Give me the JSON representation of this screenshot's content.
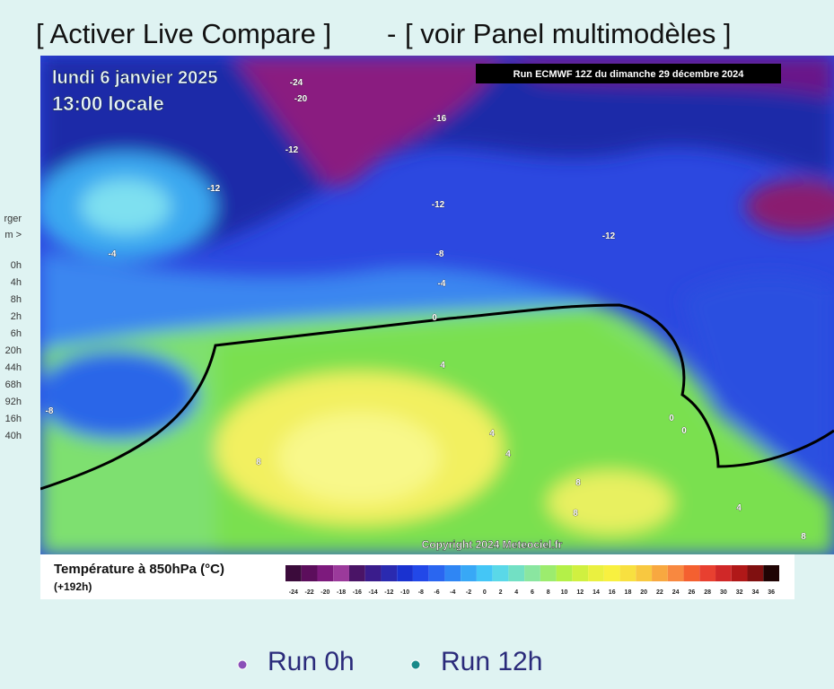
{
  "header": {
    "link_left": "[ Activer Live Compare ]",
    "separator": "-",
    "link_right": "[ voir Panel multimodèles ]"
  },
  "sidebar": {
    "items": [
      "rger",
      "m >",
      "0h",
      "4h",
      "8h",
      "2h",
      "6h",
      "20h",
      "44h",
      "68h",
      "92h",
      "16h",
      "40h"
    ]
  },
  "map": {
    "date": "lundi 6 janvier 2025",
    "time": "13:00 locale",
    "run_info": "Run ECMWF 12Z du dimanche 29 décembre 2024",
    "copyright": "Copyright 2024 Meteociel.fr",
    "contour_labels": [
      -24,
      -20,
      -16,
      -12,
      -12,
      -12,
      -12,
      -8,
      -4,
      -4,
      0,
      4,
      -8,
      8,
      4,
      4,
      0,
      0,
      8,
      8,
      4,
      8
    ]
  },
  "legend": {
    "title": "Température à 850hPa (°C)",
    "lead": "(+192h)",
    "scale_labels": [
      -24,
      -22,
      -20,
      -18,
      -16,
      -14,
      -12,
      -10,
      -8,
      -6,
      -4,
      -2,
      0,
      2,
      4,
      6,
      8,
      10,
      12,
      14,
      16,
      18,
      20,
      22,
      24,
      26,
      28,
      30,
      32,
      34,
      36
    ],
    "scale_colors": [
      "#3b0b3b",
      "#5c0e5c",
      "#7d1a7d",
      "#9b3a9b",
      "#4a1466",
      "#3a1c8c",
      "#2a2ab0",
      "#1a32d0",
      "#2248e8",
      "#2a66f0",
      "#2f86f4",
      "#38a8f6",
      "#44c6f6",
      "#5ad8e8",
      "#72e0c4",
      "#8ae6a0",
      "#9cec6e",
      "#b4f048",
      "#d0f040",
      "#eaf040",
      "#f8f040",
      "#f8e040",
      "#f8c840",
      "#f8a840",
      "#f88840",
      "#f46030",
      "#e84030",
      "#d02828",
      "#b01818",
      "#801010",
      "#200404"
    ]
  },
  "runs": [
    {
      "label": "Run 0h",
      "color": "#8a4fb8"
    },
    {
      "label": "Run 12h",
      "color": "#1a8a8a"
    }
  ]
}
